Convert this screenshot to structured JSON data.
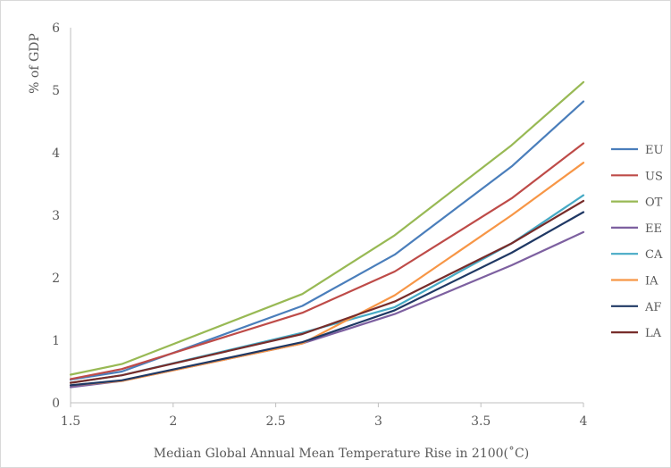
{
  "chart_data": {
    "type": "line",
    "title": "",
    "xlabel": "Median Global Annual Mean Temperature Rise  in 2100(˚C)",
    "ylabel": "% of GDP",
    "xlim": [
      1.5,
      4
    ],
    "ylim": [
      0,
      6
    ],
    "x_ticks": [
      "1.5",
      "2",
      "2.5",
      "3",
      "3.5",
      "4"
    ],
    "y_ticks": [
      "0",
      "1",
      "2",
      "3",
      "4",
      "5",
      "6"
    ],
    "grid": false,
    "legend_position": "right",
    "x": [
      1.5,
      1.75,
      2.63,
      3.08,
      3.65,
      4.0
    ],
    "series": [
      {
        "name": "EU",
        "color": "#4a7ebb",
        "values": [
          0.37,
          0.5,
          1.55,
          2.37,
          3.78,
          4.82
        ]
      },
      {
        "name": "US",
        "color": "#be4b48",
        "values": [
          0.38,
          0.54,
          1.44,
          2.1,
          3.27,
          4.15
        ]
      },
      {
        "name": "OT",
        "color": "#98b954",
        "values": [
          0.45,
          0.62,
          1.74,
          2.68,
          4.12,
          5.13
        ]
      },
      {
        "name": "EE",
        "color": "#7d60a0",
        "values": [
          0.25,
          0.35,
          0.95,
          1.42,
          2.2,
          2.73
        ]
      },
      {
        "name": "CA",
        "color": "#46aac5",
        "values": [
          0.32,
          0.44,
          1.12,
          1.53,
          2.55,
          3.32
        ]
      },
      {
        "name": "IA",
        "color": "#f79646",
        "values": [
          0.28,
          0.35,
          0.95,
          1.72,
          3.0,
          3.84
        ]
      },
      {
        "name": "AF",
        "color": "#1f3864",
        "values": [
          0.28,
          0.36,
          0.97,
          1.48,
          2.4,
          3.05
        ]
      },
      {
        "name": "LA",
        "color": "#772c2a",
        "values": [
          0.32,
          0.44,
          1.1,
          1.62,
          2.55,
          3.23
        ]
      }
    ]
  }
}
